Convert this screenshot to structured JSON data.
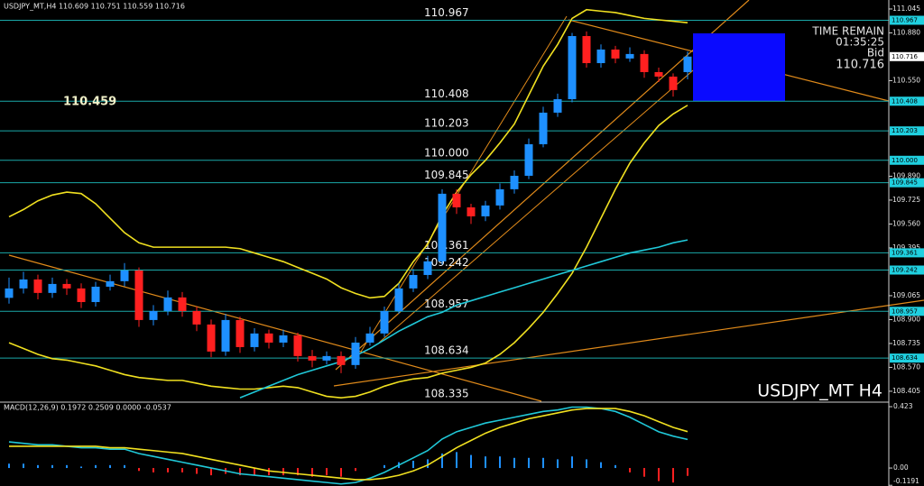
{
  "chart_data": [
    {
      "type": "candlestick",
      "title": "USDJPY_MT,H4 110.609 110.751 110.559 110.716",
      "symbol_label": "USDJPY_MT H4",
      "time_remain_label": "TIME REMAIN",
      "time_remain": "01:35:25",
      "bid_label": "Bid",
      "bid": 110.716,
      "annotation": 110.459,
      "up_color": "#1e90ff",
      "down_color": "#ff2020",
      "open": [
        109.05,
        109.115,
        109.177,
        109.084,
        109.146,
        109.115,
        109.021,
        109.127,
        109.165,
        109.239,
        108.897,
        108.959,
        109.053,
        108.959,
        108.866,
        108.679,
        108.897,
        108.71,
        108.804,
        108.741,
        108.791,
        108.648,
        108.617,
        108.648,
        108.586,
        108.741,
        108.804,
        108.959,
        109.115,
        109.208,
        109.302,
        109.769,
        109.675,
        109.613,
        109.688,
        109.8,
        109.893,
        110.111,
        110.329,
        110.422,
        110.858,
        110.671,
        110.765,
        110.703,
        110.734,
        110.609,
        110.578,
        110.609
      ],
      "high": [
        109.19,
        109.23,
        109.21,
        109.19,
        109.18,
        109.15,
        109.16,
        109.21,
        109.29,
        109.26,
        109.0,
        109.1,
        109.09,
        108.99,
        108.9,
        108.94,
        108.92,
        108.84,
        108.83,
        108.83,
        108.81,
        108.69,
        108.68,
        108.68,
        108.78,
        108.85,
        108.99,
        109.15,
        109.25,
        109.34,
        109.8,
        109.8,
        109.7,
        109.72,
        109.84,
        109.93,
        110.15,
        110.37,
        110.46,
        110.88,
        110.89,
        110.8,
        110.79,
        110.78,
        110.76,
        110.64,
        110.6,
        110.751
      ],
      "low": [
        109.01,
        109.08,
        109.04,
        109.05,
        109.07,
        108.98,
        108.99,
        109.1,
        109.13,
        108.85,
        108.86,
        108.93,
        108.92,
        108.82,
        108.64,
        108.65,
        108.67,
        108.68,
        108.7,
        108.71,
        108.61,
        108.57,
        108.59,
        108.53,
        108.56,
        108.72,
        108.78,
        108.94,
        109.09,
        109.18,
        109.28,
        109.63,
        109.56,
        109.58,
        109.66,
        109.77,
        109.87,
        110.09,
        110.3,
        110.4,
        110.64,
        110.64,
        110.67,
        110.68,
        110.57,
        110.54,
        110.44,
        110.559
      ],
      "close": [
        109.115,
        109.177,
        109.084,
        109.146,
        109.115,
        109.021,
        109.127,
        109.165,
        109.239,
        108.897,
        108.959,
        109.053,
        108.959,
        108.866,
        108.679,
        108.897,
        108.71,
        108.804,
        108.741,
        108.791,
        108.648,
        108.617,
        108.648,
        108.586,
        108.741,
        108.804,
        108.959,
        109.115,
        109.208,
        109.302,
        109.769,
        109.675,
        109.613,
        109.688,
        109.8,
        109.893,
        110.111,
        110.329,
        110.422,
        110.858,
        110.671,
        110.765,
        110.703,
        110.734,
        110.609,
        110.578,
        110.485,
        110.716
      ],
      "series": [
        {
          "color": "#f0e020",
          "values": [
            109.61,
            109.66,
            109.72,
            109.76,
            109.78,
            109.77,
            109.7,
            109.6,
            109.5,
            109.43,
            109.4,
            109.4,
            109.4,
            109.4,
            109.4,
            109.4,
            109.39,
            109.36,
            109.33,
            109.3,
            109.26,
            109.22,
            109.18,
            109.12,
            109.08,
            109.05,
            109.06,
            109.15,
            109.3,
            109.42,
            109.62,
            109.78,
            109.9,
            110.0,
            110.12,
            110.25,
            110.45,
            110.65,
            110.8,
            110.98,
            111.04,
            111.03,
            111.02,
            111.0,
            110.98,
            110.97,
            110.96,
            110.95
          ]
        },
        {
          "color": "#f0e020",
          "values": [
            108.74,
            108.7,
            108.66,
            108.63,
            108.62,
            108.6,
            108.58,
            108.55,
            108.52,
            108.5,
            108.49,
            108.48,
            108.48,
            108.46,
            108.44,
            108.43,
            108.42,
            108.42,
            108.43,
            108.44,
            108.43,
            108.4,
            108.37,
            108.36,
            108.37,
            108.4,
            108.44,
            108.47,
            108.49,
            108.5,
            108.53,
            108.55,
            108.57,
            108.6,
            108.66,
            108.74,
            108.84,
            108.95,
            109.08,
            109.22,
            109.4,
            109.6,
            109.8,
            109.98,
            110.12,
            110.24,
            110.32,
            110.38
          ]
        },
        {
          "color": "#20c8d8",
          "values": [
            null,
            null,
            null,
            null,
            null,
            null,
            null,
            null,
            null,
            null,
            null,
            null,
            null,
            null,
            null,
            null,
            108.36,
            108.4,
            108.44,
            108.48,
            108.52,
            108.55,
            108.58,
            108.61,
            108.65,
            108.7,
            108.76,
            108.82,
            108.87,
            108.92,
            108.95,
            109.0,
            109.03,
            109.06,
            109.09,
            109.12,
            109.15,
            109.18,
            109.21,
            109.24,
            109.27,
            109.3,
            109.33,
            109.36,
            109.38,
            109.4,
            109.43,
            109.45
          ]
        }
      ],
      "levels": [
        110.967,
        110.408,
        110.203,
        {
          "value": 110,
          "label": "110.000"
        },
        109.845,
        109.361,
        109.242,
        108.957,
        108.634,
        108.335
      ],
      "level_color": "#1aa8a8",
      "ylim": [
        108.336,
        111.107
      ],
      "yticks": [
        111.045,
        {
          "value": 110.88,
          "label": "110.880"
        },
        {
          "value": 110.55,
          "label": "110.550"
        },
        {
          "value": 109.89,
          "label": "109.890"
        },
        109.725,
        {
          "value": 109.56,
          "label": "109.560"
        },
        109.395,
        109.065,
        {
          "value": 108.9,
          "label": "108.900"
        },
        108.735,
        {
          "value": 108.57,
          "label": "108.570"
        },
        108.405
      ]
    },
    {
      "type": "macd",
      "title": "MACD(12,26,9) 0.1972 0.2509 0.0000 -0.0537",
      "histogram": [
        0.03,
        0.03,
        0.02,
        0.02,
        0.02,
        0.01,
        0.02,
        0.02,
        0.02,
        -0.02,
        -0.03,
        -0.03,
        -0.03,
        -0.04,
        -0.05,
        -0.04,
        -0.05,
        -0.05,
        -0.05,
        -0.05,
        -0.05,
        -0.06,
        -0.05,
        -0.06,
        -0.02,
        0.0,
        0.02,
        0.04,
        0.05,
        0.06,
        0.1,
        0.11,
        0.09,
        0.08,
        0.08,
        0.07,
        0.07,
        0.07,
        0.06,
        0.08,
        0.06,
        0.04,
        0.02,
        -0.03,
        -0.06,
        -0.09,
        -0.1,
        -0.054
      ],
      "up_color": "#1e90ff",
      "down_color": "#ff2020",
      "series": [
        {
          "color": "#20c8d8",
          "values": [
            0.18,
            0.17,
            0.16,
            0.16,
            0.15,
            0.14,
            0.14,
            0.13,
            0.13,
            0.1,
            0.08,
            0.06,
            0.04,
            0.02,
            0.0,
            -0.02,
            -0.04,
            -0.05,
            -0.06,
            -0.07,
            -0.08,
            -0.09,
            -0.1,
            -0.11,
            -0.1,
            -0.07,
            -0.03,
            0.02,
            0.07,
            0.12,
            0.2,
            0.25,
            0.28,
            0.31,
            0.33,
            0.35,
            0.37,
            0.39,
            0.4,
            0.42,
            0.42,
            0.41,
            0.39,
            0.35,
            0.3,
            0.25,
            0.22,
            0.197
          ]
        },
        {
          "color": "#f0e020",
          "values": [
            0.15,
            0.15,
            0.15,
            0.15,
            0.15,
            0.15,
            0.15,
            0.14,
            0.14,
            0.13,
            0.12,
            0.11,
            0.1,
            0.08,
            0.06,
            0.04,
            0.02,
            0.0,
            -0.02,
            -0.03,
            -0.04,
            -0.05,
            -0.06,
            -0.07,
            -0.08,
            -0.08,
            -0.07,
            -0.05,
            -0.02,
            0.02,
            0.08,
            0.14,
            0.19,
            0.24,
            0.28,
            0.31,
            0.34,
            0.36,
            0.38,
            0.4,
            0.41,
            0.41,
            0.41,
            0.39,
            0.36,
            0.32,
            0.28,
            0.251
          ]
        }
      ],
      "ylim": [
        -0.124,
        0.448
      ],
      "yticks": [
        0.423,
        {
          "value": 0,
          "label": "0.00"
        },
        -0.1191
      ]
    }
  ]
}
